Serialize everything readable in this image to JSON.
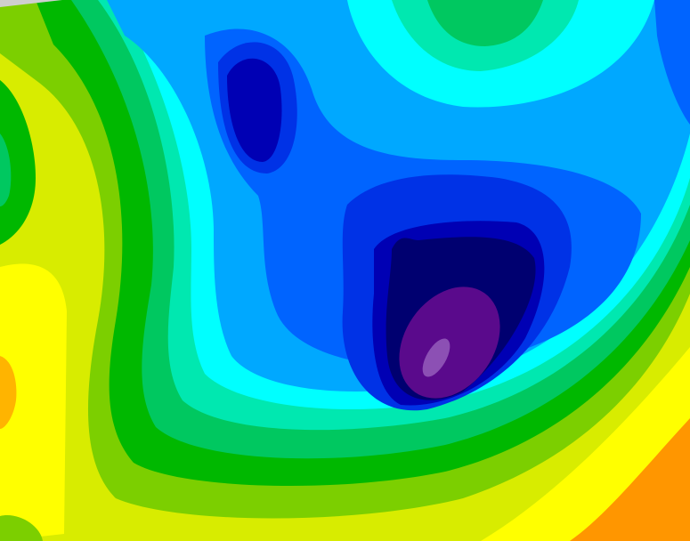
{
  "map": {
    "type": "filled-contour",
    "palette": {
      "orange": "#ff9600",
      "light_orange": "#ffb400",
      "yellow": "#ffff00",
      "yellow_lime": "#d8ec00",
      "lime": "#7ccf00",
      "green": "#00b800",
      "green_teal": "#00c860",
      "aquamarine": "#00e8b0",
      "cyan": "#00ffff",
      "sky_blue": "#00a8ff",
      "blue": "#0064ff",
      "royal_blue": "#0032e6",
      "dark_blue": "#0000b4",
      "navy": "#000070",
      "purple": "#5a0a8c",
      "light_purple": "#8c50b4"
    }
  }
}
